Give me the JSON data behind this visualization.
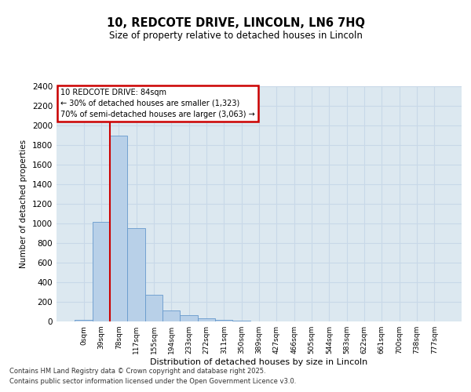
{
  "title": "10, REDCOTE DRIVE, LINCOLN, LN6 7HQ",
  "subtitle": "Size of property relative to detached houses in Lincoln",
  "xlabel": "Distribution of detached houses by size in Lincoln",
  "ylabel": "Number of detached properties",
  "categories": [
    "0sqm",
    "39sqm",
    "78sqm",
    "117sqm",
    "155sqm",
    "194sqm",
    "233sqm",
    "272sqm",
    "311sqm",
    "350sqm",
    "389sqm",
    "427sqm",
    "466sqm",
    "505sqm",
    "544sqm",
    "583sqm",
    "622sqm",
    "661sqm",
    "700sqm",
    "738sqm",
    "777sqm"
  ],
  "bar_heights": [
    20,
    1020,
    1900,
    950,
    275,
    110,
    65,
    35,
    15,
    5,
    2,
    1,
    0,
    0,
    0,
    0,
    0,
    0,
    0,
    0,
    0
  ],
  "bar_color": "#b8d0e8",
  "bar_edge_color": "#6699cc",
  "vline_color": "#cc0000",
  "annotation_text": "10 REDCOTE DRIVE: 84sqm\n← 30% of detached houses are smaller (1,323)\n70% of semi-detached houses are larger (3,063) →",
  "annotation_box_color": "#cc0000",
  "ylim": [
    0,
    2400
  ],
  "yticks": [
    0,
    200,
    400,
    600,
    800,
    1000,
    1200,
    1400,
    1600,
    1800,
    2000,
    2200,
    2400
  ],
  "grid_color": "#c8d8e8",
  "bg_color": "#dce8f0",
  "footer1": "Contains HM Land Registry data © Crown copyright and database right 2025.",
  "footer2": "Contains public sector information licensed under the Open Government Licence v3.0."
}
